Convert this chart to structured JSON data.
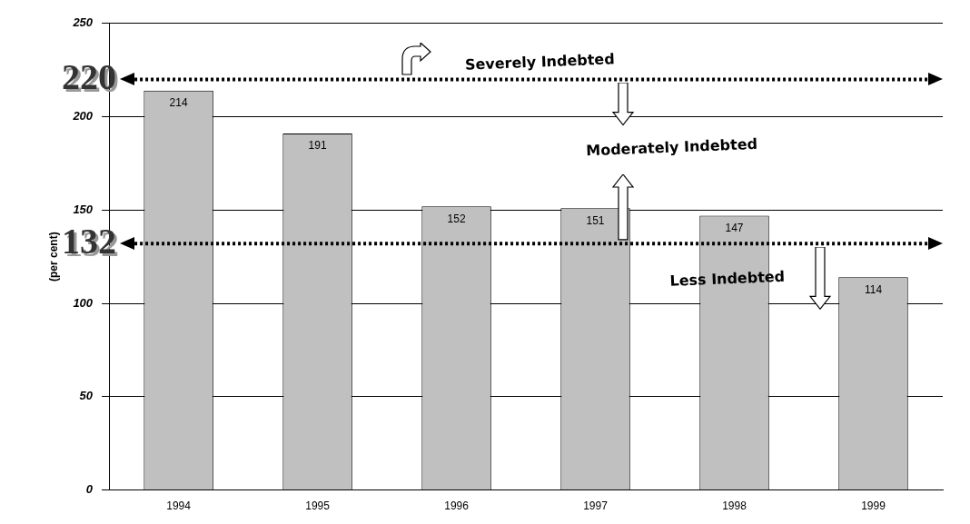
{
  "chart_data": {
    "type": "bar",
    "ylabel": "(per cent)",
    "categories": [
      "1994",
      "1995",
      "1996",
      "1997",
      "1998",
      "1999"
    ],
    "values": [
      214,
      191,
      152,
      151,
      147,
      114
    ],
    "color": "#c0c0c0",
    "ylim": [
      0,
      250
    ],
    "yticks": [
      0,
      50,
      100,
      150,
      200,
      250
    ],
    "grid": "y",
    "data_labels": true,
    "ref_lines": [
      {
        "axis": "y",
        "value": 220,
        "label": "220",
        "line_style": "dotted",
        "color": "#000000"
      },
      {
        "axis": "y",
        "value": 132,
        "label": "132",
        "line_style": "dotted",
        "color": "#000000"
      }
    ],
    "annotations": [
      "Severely Indebted",
      "Moderately Indebted",
      "Less Indebted"
    ]
  }
}
